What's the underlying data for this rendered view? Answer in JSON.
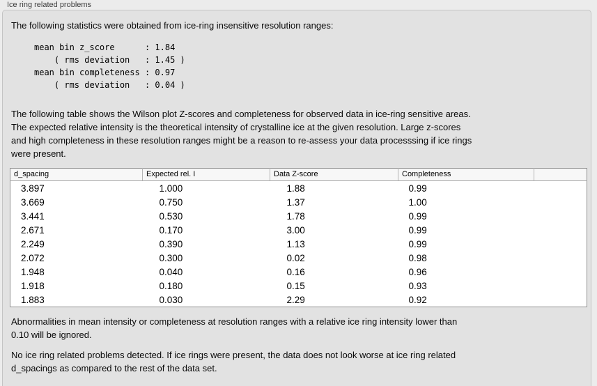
{
  "header": {
    "title": "Ice ring related problems"
  },
  "panel": {
    "intro": "The following statistics were obtained from ice-ring insensitive resolution ranges:",
    "stats_block": "mean bin z_score      : 1.84\n    ( rms deviation   : 1.45 )\nmean bin completeness : 0.97\n    ( rms deviation   : 0.04 )",
    "table_description": "The following table shows the Wilson plot Z-scores and completeness for observed data in ice-ring sensitive areas.\nThe expected relative intensity is the theoretical intensity of crystalline ice at the given resolution. Large z-scores\nand high completeness in these resolution ranges might be a reason to re-assess your data processsing if ice rings\nwere present.",
    "table": {
      "columns": [
        "d_spacing",
        "Expected rel. I",
        "Data Z-score",
        "Completeness",
        ""
      ],
      "rows": [
        [
          "3.897",
          "1.000",
          "1.88",
          "0.99"
        ],
        [
          "3.669",
          "0.750",
          "1.37",
          "1.00"
        ],
        [
          "3.441",
          "0.530",
          "1.78",
          "0.99"
        ],
        [
          "2.671",
          "0.170",
          "3.00",
          "0.99"
        ],
        [
          "2.249",
          "0.390",
          "1.13",
          "0.99"
        ],
        [
          "2.072",
          "0.300",
          "0.02",
          "0.98"
        ],
        [
          "1.948",
          "0.040",
          "0.16",
          "0.96"
        ],
        [
          "1.918",
          "0.180",
          "0.15",
          "0.93"
        ],
        [
          "1.883",
          "0.030",
          "2.29",
          "0.92"
        ]
      ]
    },
    "note_ignore": "Abnormalities in mean intensity or completeness at resolution ranges with a relative ice ring intensity lower than\n0.10 will be ignored.",
    "conclusion": "No ice ring related problems detected. If ice rings were present, the data does not look worse at ice ring related\nd_spacings as compared to the rest of the data set."
  },
  "colors": {
    "page_background": "#ececec",
    "panel_background": "#e2e2e2",
    "panel_border": "#c4c4c4",
    "table_background": "#ffffff",
    "table_border": "#8f8f8f",
    "header_row_background": "#f7f7f7"
  }
}
